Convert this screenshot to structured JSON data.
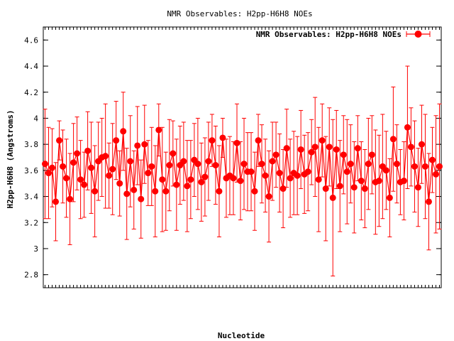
{
  "chart_data": {
    "type": "line",
    "title": "NMR Observables: H2pp-H6H8 NOEs",
    "xlabel": "Nucleotide",
    "ylabel": "H2pp-H6H8 (Angstroms)",
    "ylim": [
      2.7,
      4.7
    ],
    "yticks": [
      2.8,
      3,
      3.2,
      3.4,
      3.6,
      3.8,
      4,
      4.2,
      4.4,
      4.6
    ],
    "grid": false,
    "legend_position": "top-right",
    "series": [
      {
        "name": "NMR Observables: H2pp-H6H8 NOEs",
        "color": "#ff0000",
        "values": [
          3.65,
          3.58,
          3.62,
          3.36,
          3.83,
          3.63,
          3.54,
          3.38,
          3.66,
          3.73,
          3.53,
          3.49,
          3.75,
          3.62,
          3.44,
          3.67,
          3.7,
          3.71,
          3.56,
          3.61,
          3.83,
          3.5,
          3.9,
          3.42,
          3.67,
          3.45,
          3.79,
          3.38,
          3.8,
          3.58,
          3.63,
          3.44,
          3.91,
          3.53,
          3.44,
          3.64,
          3.73,
          3.49,
          3.64,
          3.67,
          3.48,
          3.53,
          3.68,
          3.65,
          3.51,
          3.55,
          3.67,
          3.83,
          3.64,
          3.44,
          3.85,
          3.54,
          3.56,
          3.54,
          3.81,
          3.52,
          3.65,
          3.59,
          3.59,
          3.44,
          3.83,
          3.65,
          3.56,
          3.4,
          3.67,
          3.72,
          3.58,
          3.46,
          3.77,
          3.54,
          3.58,
          3.56,
          3.76,
          3.57,
          3.59,
          3.74,
          3.78,
          3.53,
          3.83,
          3.46,
          3.78,
          3.39,
          3.76,
          3.48,
          3.72,
          3.59,
          3.65,
          3.47,
          3.77,
          3.52,
          3.46,
          3.65,
          3.72,
          3.51,
          3.52,
          3.63,
          3.6,
          3.39,
          3.84,
          3.65,
          3.51,
          3.52,
          3.93,
          3.78,
          3.63,
          3.47,
          3.8,
          3.63,
          3.36,
          3.68,
          3.57,
          3.63
        ],
        "errors": [
          0.42,
          0.35,
          0.3,
          0.3,
          0.15,
          0.28,
          0.3,
          0.35,
          0.3,
          0.28,
          0.3,
          0.25,
          0.3,
          0.35,
          0.35,
          0.3,
          0.3,
          0.4,
          0.25,
          0.35,
          0.3,
          0.25,
          0.3,
          0.35,
          0.35,
          0.3,
          0.3,
          0.3,
          0.3,
          0.25,
          0.3,
          0.35,
          0.2,
          0.4,
          0.3,
          0.35,
          0.25,
          0.35,
          0.3,
          0.3,
          0.35,
          0.3,
          0.28,
          0.35,
          0.3,
          0.3,
          0.3,
          0.2,
          0.3,
          0.35,
          0.15,
          0.3,
          0.3,
          0.28,
          0.3,
          0.3,
          0.35,
          0.3,
          0.3,
          0.3,
          0.2,
          0.3,
          0.28,
          0.35,
          0.3,
          0.25,
          0.3,
          0.3,
          0.3,
          0.3,
          0.32,
          0.3,
          0.3,
          0.3,
          0.3,
          0.25,
          0.38,
          0.4,
          0.28,
          0.4,
          0.3,
          0.6,
          0.3,
          0.35,
          0.3,
          0.4,
          0.3,
          0.35,
          0.25,
          0.3,
          0.3,
          0.35,
          0.3,
          0.4,
          0.35,
          0.4,
          0.3,
          0.3,
          0.4,
          0.3,
          0.25,
          0.3,
          0.47,
          0.3,
          0.35,
          0.3,
          0.3,
          0.4,
          0.37,
          0.25,
          0.45,
          0.48
        ]
      }
    ]
  }
}
